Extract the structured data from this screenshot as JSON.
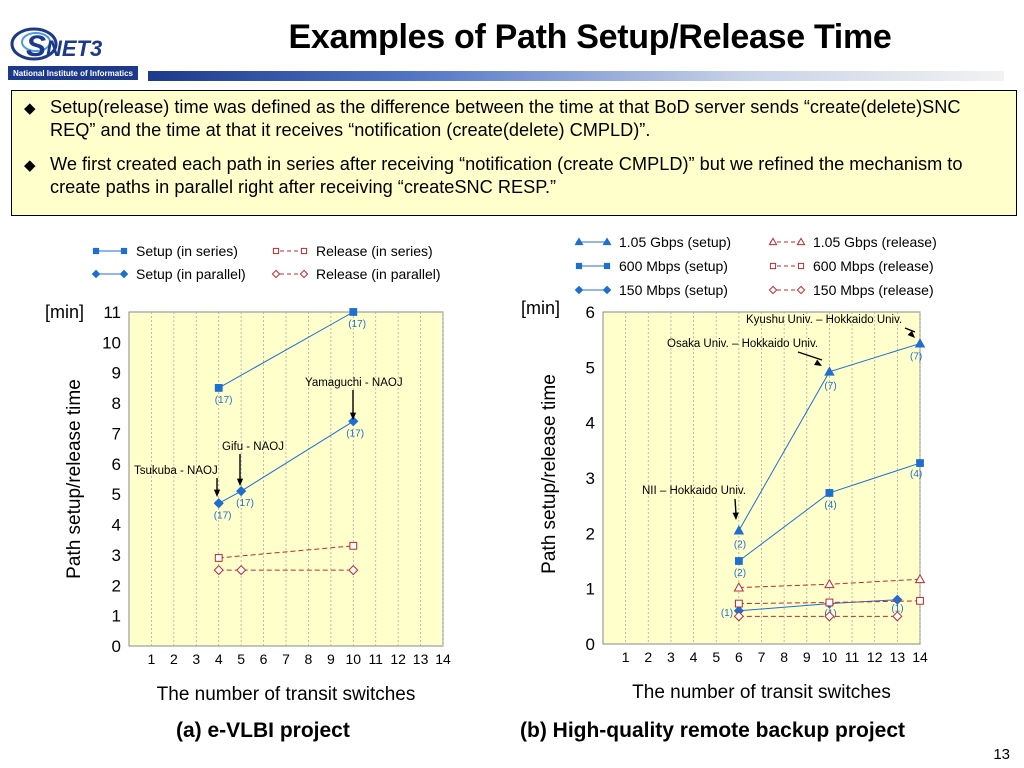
{
  "slide": {
    "title": "Examples of Path Setup/Release Time",
    "page_number": "13",
    "logo": {
      "text": "SINET3",
      "subtitle": "National Institute of Informatics"
    },
    "bullets": [
      "Setup(release) time was defined as the difference between the time at that BoD server sends “create(delete)SNC REQ” and the time at that it receives “notification (create(delete) CMPLD)”.",
      " We first created each path in series after receiving “notification (create CMPLD)” but we refined the mechanism to create paths in parallel right after receiving “createSNC RESP.”"
    ],
    "captions": [
      "(a) e-VLBI project",
      "(b) High-quality remote backup project"
    ]
  },
  "colors": {
    "setup": "#1f6fd0",
    "release": "#c0282c",
    "plot_bg": "#ffffcc",
    "title_rule": "#1d3a8a"
  },
  "chart_data": [
    {
      "type": "line",
      "xlabel": "The number of transit switches",
      "ylabel": "Path setup/release time",
      "yunit": "[min]",
      "xlim": [
        0,
        14
      ],
      "ylim": [
        0,
        11
      ],
      "xticks": [
        1,
        2,
        3,
        4,
        5,
        6,
        7,
        8,
        9,
        10,
        11,
        12,
        13,
        14
      ],
      "yticks": [
        0,
        1,
        2,
        3,
        4,
        5,
        6,
        7,
        8,
        9,
        10,
        11
      ],
      "legend_position": "top",
      "series": [
        {
          "name": "Setup (in series)",
          "marker": "square",
          "style": "solid",
          "points": [
            [
              4,
              8.5
            ],
            [
              10,
              11
            ]
          ],
          "labels": [
            "(17)",
            "(17)"
          ]
        },
        {
          "name": "Setup (in parallel)",
          "marker": "diamond",
          "style": "solid",
          "points": [
            [
              4,
              4.7
            ],
            [
              5,
              5.1
            ],
            [
              10,
              7.4
            ]
          ],
          "labels": [
            "(17)",
            "(17)",
            "(17)"
          ]
        },
        {
          "name": "Release (in series)",
          "marker": "open-square",
          "style": "dashed",
          "points": [
            [
              4,
              2.9
            ],
            [
              10,
              3.3
            ]
          ]
        },
        {
          "name": "Release (in parallel)",
          "marker": "open-diamond",
          "style": "dashed",
          "points": [
            [
              4,
              2.5
            ],
            [
              5,
              2.5
            ],
            [
              10,
              2.5
            ]
          ]
        }
      ],
      "annotations": [
        {
          "text": "Tsukuba - NAOJ",
          "x": 4,
          "y": 4.7
        },
        {
          "text": "Gifu - NAOJ",
          "x": 5,
          "y": 5.1
        },
        {
          "text": "Yamaguchi  - NAOJ",
          "x": 10,
          "y": 7.4
        }
      ]
    },
    {
      "type": "line",
      "xlabel": "The number of transit switches",
      "ylabel": "Path setup/release time",
      "yunit": "[min]",
      "xlim": [
        0,
        14
      ],
      "ylim": [
        0,
        6
      ],
      "xticks": [
        1,
        2,
        3,
        4,
        5,
        6,
        7,
        8,
        9,
        10,
        11,
        12,
        13,
        14
      ],
      "yticks": [
        0,
        1,
        2,
        3,
        4,
        5,
        6
      ],
      "legend_position": "top",
      "series": [
        {
          "name": "1.05 Gbps (setup)",
          "marker": "triangle",
          "style": "solid",
          "points": [
            [
              6,
              2.05
            ],
            [
              10,
              4.92
            ],
            [
              14,
              5.43
            ]
          ],
          "labels": [
            "(2)",
            "(7)",
            "(7)"
          ]
        },
        {
          "name": "600 Mbps (setup)",
          "marker": "square",
          "style": "solid",
          "points": [
            [
              6,
              1.5
            ],
            [
              10,
              2.73
            ],
            [
              14,
              3.27
            ]
          ],
          "labels": [
            "(2)",
            "(4)",
            "(4)"
          ]
        },
        {
          "name": "150 Mbps (setup)",
          "marker": "diamond",
          "style": "solid",
          "points": [
            [
              6,
              0.6
            ],
            [
              10,
              0.73
            ],
            [
              13,
              0.8
            ]
          ],
          "labels": [
            "(1)",
            "(1)",
            "(1)"
          ]
        },
        {
          "name": "1.05 Gbps (release)",
          "marker": "open-triangle",
          "style": "dashed",
          "points": [
            [
              6,
              1.02
            ],
            [
              10,
              1.08
            ],
            [
              14,
              1.17
            ]
          ]
        },
        {
          "name": "600 Mbps (release)",
          "marker": "open-square",
          "style": "dashed",
          "points": [
            [
              6,
              0.73
            ],
            [
              10,
              0.75
            ],
            [
              14,
              0.78
            ]
          ]
        },
        {
          "name": "150 Mbps (release)",
          "marker": "open-diamond",
          "style": "dashed",
          "points": [
            [
              6,
              0.5
            ],
            [
              10,
              0.5
            ],
            [
              13,
              0.5
            ]
          ]
        }
      ],
      "annotations": [
        {
          "text": "Kyushu Univ. – Hokkaido Univ.",
          "x": 14,
          "y": 5.43
        },
        {
          "text": "Osaka Univ. – Hokkaido Univ.",
          "x": 10,
          "y": 4.92
        },
        {
          "text": "NII – Hokkaido Univ.",
          "x": 6,
          "y": 2.05
        }
      ]
    }
  ]
}
